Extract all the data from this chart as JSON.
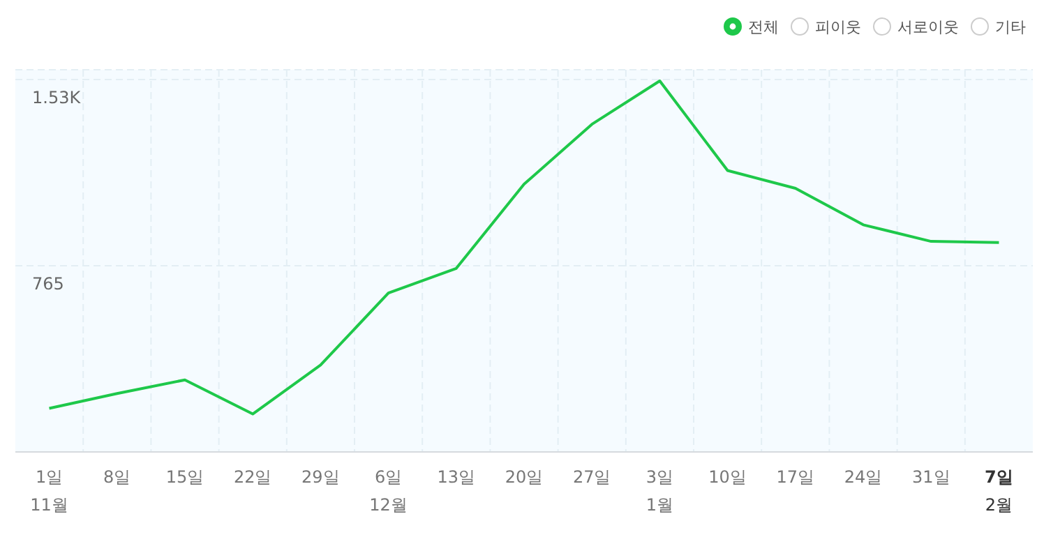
{
  "chart_data": {
    "type": "line",
    "categories": [
      "1일\n11월",
      "8일",
      "15일",
      "22일",
      "29일",
      "6일\n12월",
      "13일",
      "20일",
      "27일",
      "3일\n1월",
      "10일",
      "17일",
      "24일",
      "31일",
      "7일\n2월"
    ],
    "series": [
      {
        "name": "전체",
        "color": "#1ec84a",
        "values": [
          179,
          240,
          296,
          156,
          357,
          653,
          754,
          1100,
          1346,
          1524,
          1156,
          1083,
          933,
          865,
          860
        ]
      }
    ],
    "ylim": [
      0,
      1570
    ],
    "yticks": [
      {
        "value": 0,
        "label": null
      },
      765,
      {
        "value": 1530,
        "label": "1.53K"
      }
    ],
    "grid": true,
    "legend": "top right",
    "marker": "none",
    "line_style": "solid",
    "annotations": [
      "피이웃",
      "서로이웃",
      "기타"
    ]
  }
}
